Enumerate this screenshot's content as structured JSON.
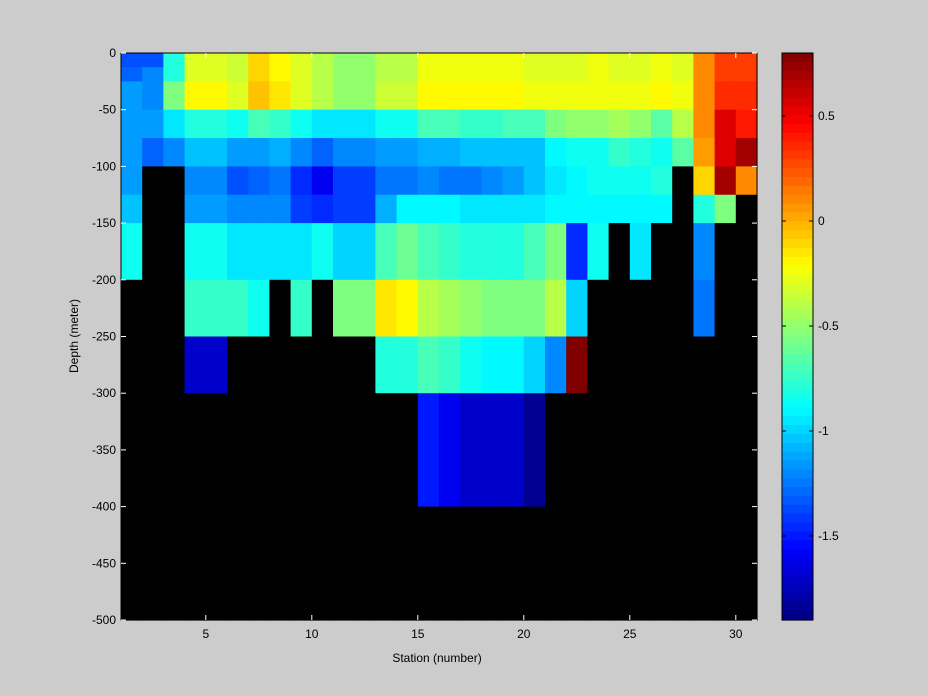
{
  "chart_data": {
    "type": "heatmap",
    "xlabel": "Station (number)",
    "ylabel": "Depth (meter)",
    "xlim": [
      1,
      31
    ],
    "ylim": [
      -500,
      0
    ],
    "xticks": [
      5,
      10,
      15,
      20,
      25,
      30
    ],
    "yticks": [
      0,
      -50,
      -100,
      -150,
      -200,
      -250,
      -300,
      -350,
      -400,
      -450,
      -500
    ],
    "colorbar": {
      "colormap": "jet",
      "clim": [
        -1.9,
        0.8
      ],
      "ticks": [
        0.5,
        0,
        -0.5,
        -1,
        -1.5
      ]
    },
    "missing_color": "#000000",
    "stations": [
      1,
      2,
      3,
      4,
      5,
      6,
      7,
      8,
      9,
      10,
      11,
      12,
      13,
      14,
      15,
      16,
      17,
      18,
      19,
      20,
      21,
      22,
      23,
      24,
      25,
      26,
      27,
      28,
      29,
      30
    ],
    "depth_bin_tops": [
      0,
      -12.5,
      -25,
      -50,
      -75,
      -100,
      -125,
      -150,
      -200,
      -250,
      -300,
      -350,
      -400,
      -450
    ],
    "depth_bin_bottoms": [
      -12.5,
      -25,
      -50,
      -75,
      -100,
      -125,
      -150,
      -200,
      -250,
      -300,
      -350,
      -400,
      -450,
      -500
    ],
    "values": [
      [
        -1.35,
        -1.35,
        -0.8,
        -0.3,
        -0.3,
        -0.35,
        -0.1,
        -0.2,
        -0.3,
        -0.4,
        -0.5,
        -0.5,
        -0.4,
        -0.4,
        -0.25,
        -0.25,
        -0.25,
        -0.25,
        -0.25,
        -0.3,
        -0.3,
        -0.3,
        -0.25,
        -0.3,
        -0.3,
        -0.25,
        -0.3,
        0.1,
        0.3,
        0.3
      ],
      [
        -1.3,
        -1.2,
        -0.8,
        -0.3,
        -0.3,
        -0.35,
        -0.1,
        -0.2,
        -0.3,
        -0.4,
        -0.5,
        -0.5,
        -0.4,
        -0.4,
        -0.25,
        -0.25,
        -0.25,
        -0.25,
        -0.25,
        -0.3,
        -0.3,
        -0.3,
        -0.25,
        -0.3,
        -0.3,
        -0.25,
        -0.3,
        0.1,
        0.3,
        0.3
      ],
      [
        -1.15,
        -1.2,
        -0.55,
        -0.2,
        -0.2,
        -0.3,
        -0.05,
        -0.15,
        -0.3,
        -0.4,
        -0.5,
        -0.5,
        -0.35,
        -0.35,
        -0.2,
        -0.2,
        -0.2,
        -0.2,
        -0.2,
        -0.25,
        -0.25,
        -0.25,
        -0.25,
        -0.25,
        -0.25,
        -0.2,
        -0.25,
        0.1,
        0.35,
        0.35
      ],
      [
        -1.15,
        -1.15,
        -0.95,
        -0.8,
        -0.8,
        -0.85,
        -0.7,
        -0.75,
        -0.85,
        -0.95,
        -0.95,
        -0.95,
        -0.85,
        -0.85,
        -0.7,
        -0.7,
        -0.75,
        -0.75,
        -0.7,
        -0.7,
        -0.55,
        -0.5,
        -0.5,
        -0.45,
        -0.5,
        -0.65,
        -0.4,
        0.1,
        0.55,
        0.4
      ],
      [
        -1.15,
        -1.3,
        -1.2,
        -1.05,
        -1.05,
        -1.15,
        -1.15,
        -1.1,
        -1.2,
        -1.3,
        -1.2,
        -1.2,
        -1.15,
        -1.15,
        -1.1,
        -1.1,
        -1.05,
        -1.05,
        -1.05,
        -1.05,
        -0.9,
        -0.85,
        -0.85,
        -0.75,
        -0.8,
        -0.85,
        -0.65,
        0.05,
        0.55,
        0.7
      ],
      [
        -1.15,
        null,
        null,
        -1.2,
        -1.2,
        -1.35,
        -1.3,
        -1.25,
        -1.45,
        -1.6,
        -1.4,
        -1.4,
        -1.25,
        -1.25,
        -1.2,
        -1.25,
        -1.25,
        -1.2,
        -1.15,
        -1.05,
        -0.95,
        -0.9,
        -0.85,
        -0.85,
        -0.85,
        -0.8,
        null,
        -0.1,
        0.7,
        0.1
      ],
      [
        -1.05,
        null,
        null,
        -1.15,
        -1.15,
        -1.2,
        -1.2,
        -1.2,
        -1.4,
        -1.45,
        -1.4,
        -1.4,
        -1.1,
        -0.9,
        -0.9,
        -0.9,
        -0.95,
        -0.95,
        -0.95,
        -0.95,
        -0.9,
        -0.9,
        -0.9,
        -0.9,
        -0.9,
        -0.9,
        null,
        -0.8,
        -0.55,
        null
      ],
      [
        -0.85,
        null,
        null,
        -0.85,
        -0.85,
        -0.95,
        -0.95,
        -0.95,
        -0.95,
        -0.85,
        -1.0,
        -1.0,
        -0.7,
        -0.6,
        -0.7,
        -0.75,
        -0.8,
        -0.8,
        -0.8,
        -0.7,
        -0.55,
        -1.45,
        -0.85,
        null,
        -0.95,
        null,
        null,
        -1.2,
        null,
        null
      ],
      [
        null,
        null,
        null,
        -0.75,
        -0.75,
        -0.75,
        -0.85,
        null,
        -0.75,
        null,
        -0.55,
        -0.55,
        -0.15,
        -0.2,
        -0.4,
        -0.45,
        -0.5,
        -0.55,
        -0.55,
        -0.55,
        -0.4,
        -1.0,
        null,
        null,
        null,
        null,
        null,
        -1.25,
        null,
        null
      ],
      [
        null,
        null,
        null,
        -1.7,
        -1.7,
        null,
        null,
        null,
        null,
        null,
        null,
        null,
        -0.8,
        -0.8,
        -0.7,
        -0.75,
        -0.85,
        -0.9,
        -0.9,
        -1.0,
        -1.2,
        0.8,
        null,
        null,
        null,
        null,
        null,
        null,
        null,
        null
      ],
      [
        null,
        null,
        null,
        null,
        null,
        null,
        null,
        null,
        null,
        null,
        null,
        null,
        null,
        null,
        -1.5,
        -1.6,
        -1.7,
        -1.7,
        -1.7,
        -1.85,
        null,
        null,
        null,
        null,
        null,
        null,
        null,
        null,
        null,
        null
      ],
      [
        null,
        null,
        null,
        null,
        null,
        null,
        null,
        null,
        null,
        null,
        null,
        null,
        null,
        null,
        -1.5,
        -1.6,
        -1.7,
        -1.7,
        -1.7,
        -1.85,
        null,
        null,
        null,
        null,
        null,
        null,
        null,
        null,
        null,
        null
      ],
      [
        null,
        null,
        null,
        null,
        null,
        null,
        null,
        null,
        null,
        null,
        null,
        null,
        null,
        null,
        null,
        null,
        null,
        null,
        null,
        null,
        null,
        null,
        null,
        null,
        null,
        null,
        null,
        null,
        null,
        null
      ],
      [
        null,
        null,
        null,
        null,
        null,
        null,
        null,
        null,
        null,
        null,
        null,
        null,
        null,
        null,
        null,
        null,
        null,
        null,
        null,
        null,
        null,
        null,
        null,
        null,
        null,
        null,
        null,
        null,
        null,
        null
      ]
    ]
  }
}
